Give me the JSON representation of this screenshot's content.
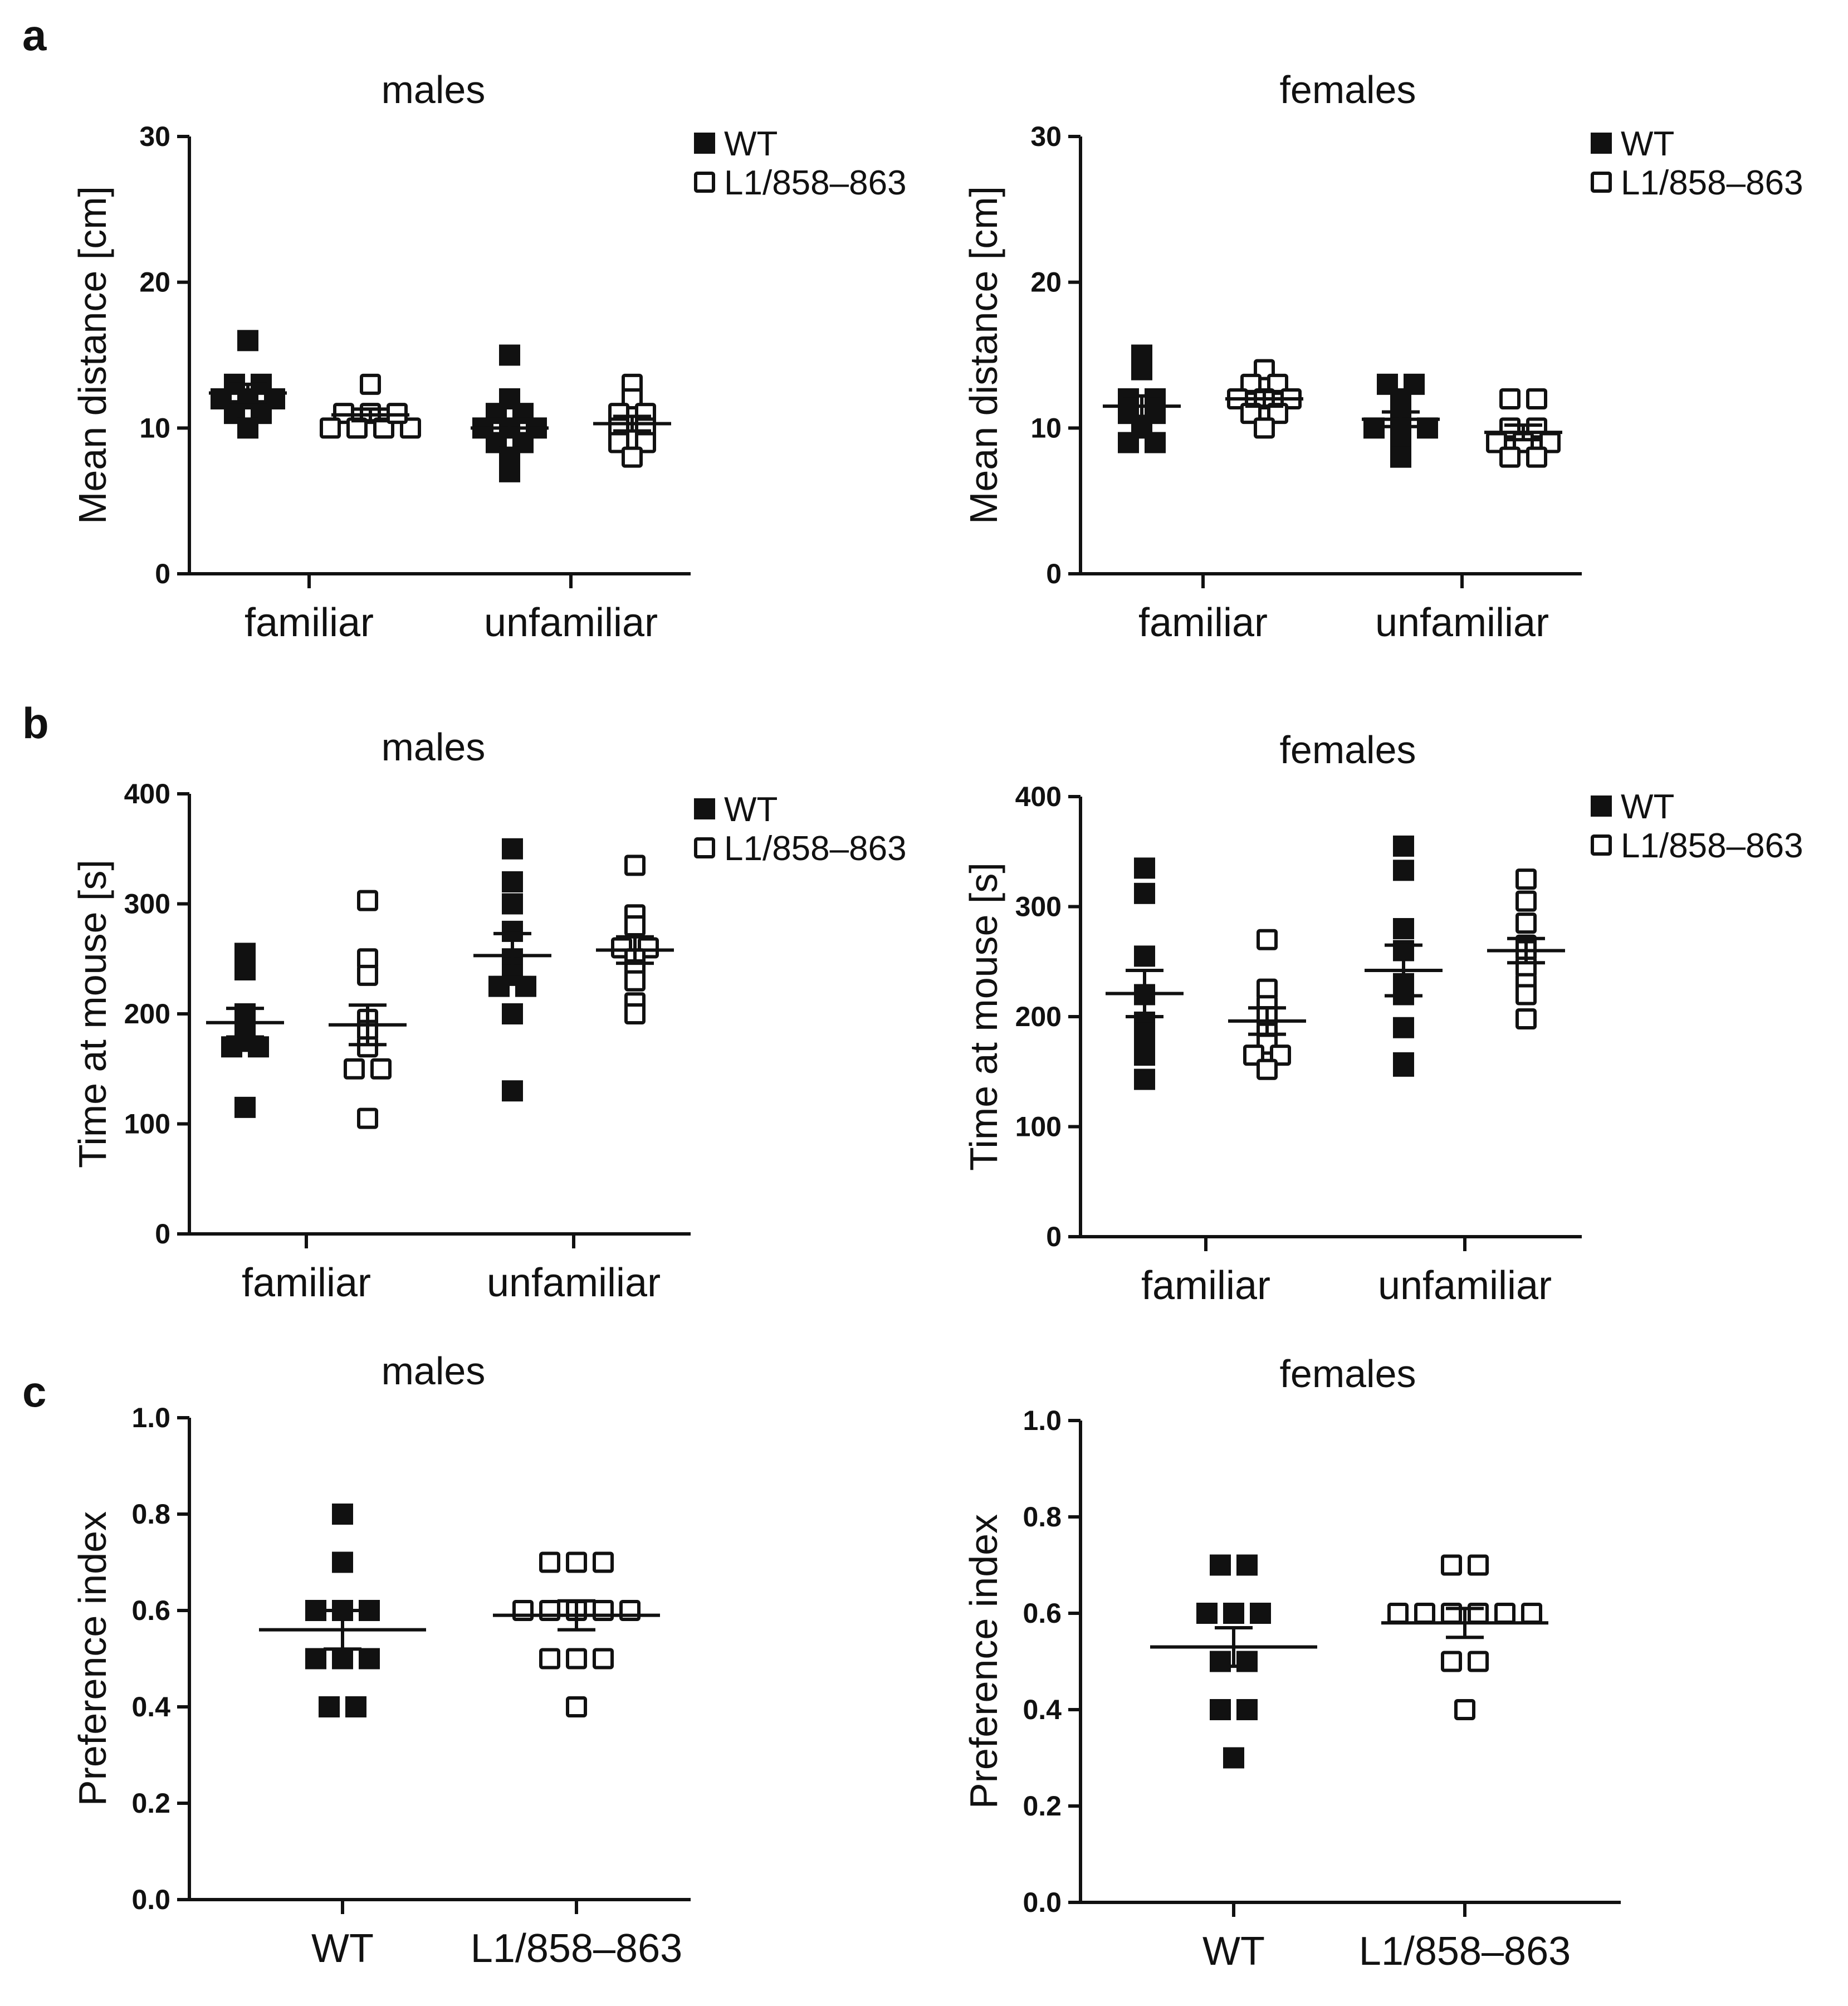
{
  "panels": [
    {
      "letter": "a"
    },
    {
      "letter": "b"
    },
    {
      "letter": "c"
    }
  ],
  "chart_data": [
    {
      "id": "a-males",
      "panel": "a",
      "type": "scatter",
      "title": "males",
      "ylabel": "Mean distance [cm]",
      "ylim": [
        0,
        30
      ],
      "yticks": [
        "0",
        "10",
        "20",
        "30"
      ],
      "categories": [
        "familiar",
        "unfamiliar"
      ],
      "legend": {
        "placement": "top-right",
        "entries": [
          "WT",
          "L1/858–863"
        ]
      },
      "series": [
        {
          "name": "WT",
          "fill": "filled",
          "groups": [
            {
              "category": "familiar",
              "values": [
                16,
                13,
                13,
                12,
                12,
                12,
                11,
                11,
                10
              ],
              "mean": 12.4,
              "sem": 0.6
            },
            {
              "category": "unfamiliar",
              "values": [
                15,
                12,
                11,
                11,
                10,
                10,
                10,
                9,
                9,
                8,
                7
              ],
              "mean": 10.0,
              "sem": 0.6
            }
          ]
        },
        {
          "name": "L1/858–863",
          "fill": "open",
          "groups": [
            {
              "category": "familiar",
              "values": [
                13,
                11,
                11,
                10,
                10,
                10,
                10,
                11
              ],
              "mean": 10.9,
              "sem": 0.4
            },
            {
              "category": "unfamiliar",
              "values": [
                13,
                12,
                11,
                11,
                10,
                10,
                9,
                9,
                8
              ],
              "mean": 10.3,
              "sem": 0.5
            }
          ]
        }
      ]
    },
    {
      "id": "a-females",
      "panel": "a",
      "type": "scatter",
      "title": "females",
      "ylabel": "Mean distance [cm]",
      "ylim": [
        0,
        30
      ],
      "yticks": [
        "0",
        "10",
        "20",
        "30"
      ],
      "categories": [
        "familiar",
        "unfamiliar"
      ],
      "legend": {
        "placement": "top-right",
        "entries": [
          "WT",
          "L1/858–863"
        ]
      },
      "series": [
        {
          "name": "WT",
          "fill": "filled",
          "groups": [
            {
              "category": "familiar",
              "values": [
                15,
                14,
                12,
                12,
                11,
                11,
                10,
                9,
                9
              ],
              "mean": 11.5,
              "sem": 0.7
            },
            {
              "category": "unfamiliar",
              "values": [
                13,
                13,
                12,
                11,
                10,
                10,
                10,
                9,
                8
              ],
              "mean": 10.6,
              "sem": 0.5
            }
          ]
        },
        {
          "name": "L1/858–863",
          "fill": "open",
          "groups": [
            {
              "category": "familiar",
              "values": [
                14,
                13,
                13,
                12,
                12,
                12,
                11,
                11,
                10
              ],
              "mean": 12.0,
              "sem": 0.5
            },
            {
              "category": "unfamiliar",
              "values": [
                12,
                12,
                10,
                10,
                9,
                9,
                9,
                8,
                8
              ],
              "mean": 9.7,
              "sem": 0.5
            }
          ]
        }
      ]
    },
    {
      "id": "b-males",
      "panel": "b",
      "type": "scatter",
      "title": "males",
      "ylabel": "Time at mouse [s]",
      "ylim": [
        0,
        400
      ],
      "yticks": [
        "0",
        "100",
        "200",
        "300",
        "400"
      ],
      "categories": [
        "familiar",
        "unfamiliar"
      ],
      "legend": {
        "placement": "top-right",
        "entries": [
          "WT",
          "L1/858–863"
        ]
      },
      "series": [
        {
          "name": "WT",
          "fill": "filled",
          "groups": [
            {
              "category": "familiar",
              "values": [
                255,
                240,
                200,
                195,
                190,
                175,
                170,
                170,
                115
              ],
              "mean": 192,
              "sem": 13
            },
            {
              "category": "unfamiliar",
              "values": [
                350,
                320,
                300,
                275,
                250,
                235,
                225,
                225,
                200,
                130
              ],
              "mean": 253,
              "sem": 20
            }
          ]
        },
        {
          "name": "L1/858–863",
          "fill": "open",
          "groups": [
            {
              "category": "familiar",
              "values": [
                303,
                250,
                235,
                195,
                185,
                170,
                150,
                150,
                105
              ],
              "mean": 190,
              "sem": 18
            },
            {
              "category": "unfamiliar",
              "values": [
                335,
                290,
                280,
                260,
                260,
                250,
                240,
                230,
                210,
                200
              ],
              "mean": 258,
              "sem": 12
            }
          ]
        }
      ]
    },
    {
      "id": "b-females",
      "panel": "b",
      "type": "scatter",
      "title": "females",
      "ylabel": "Time at mouse [s]",
      "ylim": [
        0,
        400
      ],
      "yticks": [
        "0",
        "100",
        "200",
        "300",
        "400"
      ],
      "categories": [
        "familiar",
        "unfamiliar"
      ],
      "legend": {
        "placement": "top-right",
        "entries": [
          "WT",
          "L1/858–863"
        ]
      },
      "series": [
        {
          "name": "WT",
          "fill": "filled",
          "groups": [
            {
              "category": "familiar",
              "values": [
                335,
                312,
                255,
                220,
                195,
                185,
                170,
                165,
                143
              ],
              "mean": 221,
              "sem": 21
            },
            {
              "category": "unfamiliar",
              "values": [
                355,
                333,
                280,
                260,
                230,
                220,
                190,
                158,
                155
              ],
              "mean": 242,
              "sem": 23
            }
          ]
        },
        {
          "name": "L1/858–863",
          "fill": "open",
          "groups": [
            {
              "category": "familiar",
              "values": [
                270,
                225,
                210,
                200,
                185,
                175,
                165,
                165,
                152
              ],
              "mean": 196,
              "sem": 12
            },
            {
              "category": "unfamiliar",
              "values": [
                325,
                305,
                285,
                265,
                262,
                260,
                245,
                230,
                220,
                198
              ],
              "mean": 260,
              "sem": 11
            }
          ]
        }
      ]
    },
    {
      "id": "c-males",
      "panel": "c",
      "type": "scatter",
      "title": "males",
      "ylabel": "Preference index",
      "ylim": [
        0,
        1
      ],
      "yticks": [
        "0.0",
        "0.2",
        "0.4",
        "0.6",
        "0.8",
        "1.0"
      ],
      "categories": [
        "WT",
        "L1/858–863"
      ],
      "series": [
        {
          "name": "WT",
          "fill": "filled",
          "groups": [
            {
              "category": "WT",
              "values": [
                0.8,
                0.7,
                0.6,
                0.6,
                0.6,
                0.5,
                0.5,
                0.5,
                0.4,
                0.4
              ],
              "mean": 0.56,
              "sem": 0.04
            }
          ]
        },
        {
          "name": "L1/858–863",
          "fill": "open",
          "groups": [
            {
              "category": "L1/858–863",
              "values": [
                0.7,
                0.7,
                0.7,
                0.6,
                0.6,
                0.6,
                0.6,
                0.6,
                0.5,
                0.5,
                0.5,
                0.4
              ],
              "mean": 0.59,
              "sem": 0.03
            }
          ]
        }
      ]
    },
    {
      "id": "c-females",
      "panel": "c",
      "type": "scatter",
      "title": "females",
      "ylabel": "Preference index",
      "ylim": [
        0,
        1
      ],
      "yticks": [
        "0.0",
        "0.2",
        "0.4",
        "0.6",
        "0.8",
        "1.0"
      ],
      "categories": [
        "WT",
        "L1/858–863"
      ],
      "series": [
        {
          "name": "WT",
          "fill": "filled",
          "groups": [
            {
              "category": "WT",
              "values": [
                0.7,
                0.7,
                0.6,
                0.6,
                0.6,
                0.5,
                0.5,
                0.4,
                0.4,
                0.3
              ],
              "mean": 0.53,
              "sem": 0.04
            }
          ]
        },
        {
          "name": "L1/858–863",
          "fill": "open",
          "groups": [
            {
              "category": "L1/858–863",
              "values": [
                0.7,
                0.7,
                0.6,
                0.6,
                0.6,
                0.6,
                0.6,
                0.6,
                0.5,
                0.5,
                0.4
              ],
              "mean": 0.58,
              "sem": 0.03
            }
          ]
        }
      ]
    }
  ]
}
